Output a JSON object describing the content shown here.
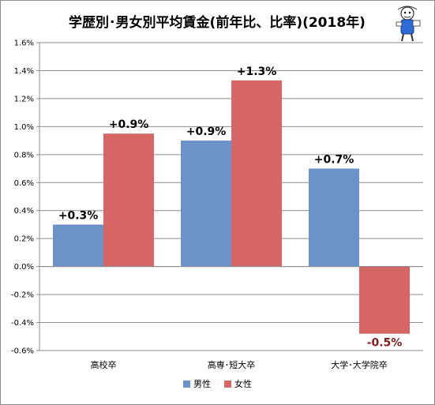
{
  "chart_data": {
    "type": "bar",
    "title": "学歴別･男女別平均賃金(前年比、比率)(2018年)",
    "categories": [
      "高校卒",
      "高専･短大卒",
      "大学･大学院卒"
    ],
    "series": [
      {
        "name": "男性",
        "values": [
          0.3,
          0.9,
          0.7
        ],
        "labels": [
          "+0.3%",
          "+0.9%",
          "+0.7%"
        ]
      },
      {
        "name": "女性",
        "values": [
          0.95,
          1.33,
          -0.48
        ],
        "labels": [
          "+0.9%",
          "+1.3%",
          "-0.5%"
        ]
      }
    ],
    "ylim": [
      -0.6,
      1.6
    ],
    "ytick_step": 0.2,
    "ytick_suffix": "%",
    "grid": true,
    "legend_position": "bottom-center",
    "colors": {
      "男性": "#6b93c9",
      "女性": "#d66666",
      "negative_label": "#7f1d1d"
    }
  },
  "mascot": {
    "icon": "mascot-icon"
  }
}
